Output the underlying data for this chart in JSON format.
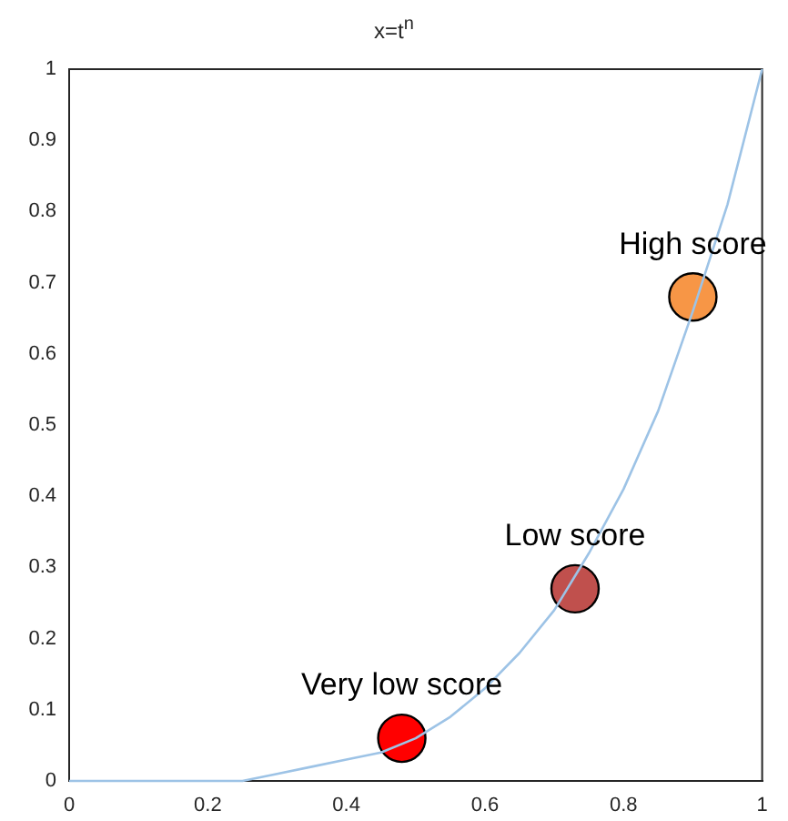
{
  "chart_data": {
    "type": "line",
    "title": "x=t$^{n}$",
    "series": [
      {
        "type": "line",
        "color": "#9dc3e6",
        "marker": "none",
        "x": [
          0,
          0.1,
          0.2,
          0.25,
          0.3,
          0.35,
          0.4,
          0.45,
          0.5,
          0.55,
          0.6,
          0.65,
          0.7,
          0.75,
          0.8,
          0.85,
          0.9,
          0.95,
          1
        ],
        "values": [
          0,
          0,
          0,
          0,
          0.01,
          0.02,
          0.03,
          0.04,
          0.06,
          0.09,
          0.13,
          0.18,
          0.24,
          0.32,
          0.41,
          0.52,
          0.66,
          0.81,
          1
        ]
      },
      {
        "type": "scatter",
        "marker": "circle",
        "x": [
          0.48,
          0.73,
          0.9
        ],
        "values": [
          0.06,
          0.27,
          0.68
        ],
        "colors": [
          "#ff0000",
          "#c0504d",
          "#f79646"
        ]
      }
    ],
    "annotations": [
      {
        "text": "Very low score",
        "x": 0.48,
        "y": 0.06
      },
      {
        "text": "Low score",
        "x": 0.73,
        "y": 0.27
      },
      {
        "text": "High score",
        "x": 0.9,
        "y": 0.68
      }
    ],
    "xlim": [
      0,
      1
    ],
    "ylim": [
      0,
      1
    ],
    "xticks": [
      0,
      0.2,
      0.4,
      0.6,
      0.8,
      1
    ],
    "yticks": [
      0,
      0.1,
      0.2,
      0.3,
      0.4,
      0.5,
      0.6,
      0.7,
      0.8,
      0.9,
      1
    ],
    "grid": false,
    "legend": false
  }
}
